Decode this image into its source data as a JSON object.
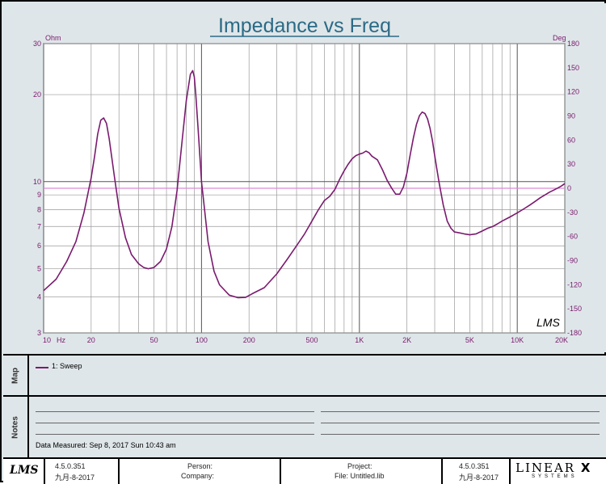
{
  "chart_data": {
    "type": "line",
    "title": "Impedance vs Freq",
    "y_unit_left": "Ohm",
    "y_unit_right": "Deg",
    "x_unit": "Hz",
    "x_scale": "log",
    "y_scale_left": "log",
    "xlim": [
      10,
      20000
    ],
    "ylim_left": [
      3,
      30
    ],
    "ylim_right": [
      -180,
      180
    ],
    "x_tick_labels": [
      {
        "v": 10,
        "label": "10"
      },
      {
        "v": 20,
        "label": "20"
      },
      {
        "v": 50,
        "label": "50"
      },
      {
        "v": 100,
        "label": "100"
      },
      {
        "v": 200,
        "label": "200"
      },
      {
        "v": 500,
        "label": "500"
      },
      {
        "v": 1000,
        "label": "1K"
      },
      {
        "v": 2000,
        "label": "2K"
      },
      {
        "v": 5000,
        "label": "5K"
      },
      {
        "v": 10000,
        "label": "10K"
      },
      {
        "v": 20000,
        "label": "20K"
      }
    ],
    "y_tick_labels_left": [
      3,
      4,
      5,
      6,
      7,
      8,
      9,
      10,
      20,
      30
    ],
    "y_tick_labels_right": [
      -180,
      -150,
      -120,
      -90,
      -60,
      -30,
      0,
      30,
      60,
      90,
      120,
      150,
      180
    ],
    "reference_line_deg": 0,
    "grid": true,
    "series": [
      {
        "name": "1: Sweep",
        "color": "#7a1a6e",
        "axis": "left",
        "x": [
          10,
          12,
          14,
          16,
          18,
          20,
          21,
          22,
          23,
          24,
          25,
          26,
          28,
          30,
          33,
          36,
          40,
          43,
          46,
          50,
          55,
          60,
          65,
          70,
          75,
          80,
          85,
          88,
          90,
          92,
          95,
          100,
          110,
          120,
          130,
          150,
          170,
          190,
          210,
          250,
          300,
          350,
          400,
          450,
          500,
          550,
          600,
          650,
          700,
          750,
          800,
          850,
          900,
          950,
          1000,
          1050,
          1100,
          1150,
          1200,
          1300,
          1400,
          1500,
          1600,
          1700,
          1800,
          1900,
          2000,
          2100,
          2200,
          2300,
          2400,
          2500,
          2600,
          2700,
          2800,
          2900,
          3000,
          3100,
          3200,
          3400,
          3600,
          3800,
          4000,
          4300,
          4600,
          5000,
          5500,
          6000,
          6500,
          7000,
          7500,
          8000,
          9000,
          10000,
          11000,
          12000,
          13000,
          14000,
          15000,
          16000,
          17000,
          18000,
          19000,
          20000
        ],
        "values": [
          4.2,
          4.6,
          5.3,
          6.2,
          7.8,
          10.3,
          12.2,
          14.6,
          16.3,
          16.6,
          15.9,
          14.1,
          10.5,
          8.1,
          6.4,
          5.6,
          5.2,
          5.05,
          5.0,
          5.05,
          5.3,
          5.85,
          7.0,
          9.3,
          13.5,
          19.0,
          23.5,
          24.2,
          23.0,
          20.0,
          15.5,
          10.0,
          6.2,
          4.9,
          4.4,
          4.05,
          3.97,
          3.98,
          4.1,
          4.3,
          4.8,
          5.4,
          6.0,
          6.6,
          7.3,
          8.0,
          8.6,
          8.9,
          9.4,
          10.2,
          10.9,
          11.5,
          12.0,
          12.3,
          12.45,
          12.55,
          12.75,
          12.6,
          12.25,
          11.9,
          11.0,
          10.1,
          9.5,
          9.05,
          9.05,
          9.6,
          10.7,
          12.4,
          14.2,
          15.8,
          16.9,
          17.4,
          17.2,
          16.5,
          15.3,
          13.9,
          12.3,
          11.0,
          9.9,
          8.3,
          7.3,
          6.9,
          6.7,
          6.65,
          6.6,
          6.55,
          6.6,
          6.75,
          6.9,
          7.0,
          7.15,
          7.3,
          7.55,
          7.8,
          8.05,
          8.3,
          8.55,
          8.8,
          9.0,
          9.2,
          9.35,
          9.5,
          9.65,
          9.85
        ]
      }
    ]
  },
  "legend": {
    "entry": "1: Sweep"
  },
  "panels": {
    "map_label": "Map",
    "notes_label": "Notes"
  },
  "notes": {
    "measured": "Data Measured: Sep 8, 2017 Sun 10:43 am"
  },
  "watermark": "LMS",
  "footer": {
    "logo": "LMS",
    "version_left": "4.5.0.351",
    "date_left": "九月-8-2017",
    "person_label": "Person:",
    "company_label": "Company:",
    "project_label": "Project:",
    "file_label": "File: Untitled.lib",
    "version_right": "4.5.0.351",
    "date_right": "九月-8-2017",
    "brand_top": "LINEAR",
    "brand_mark": "X",
    "brand_bottom": "SYSTEMS"
  }
}
